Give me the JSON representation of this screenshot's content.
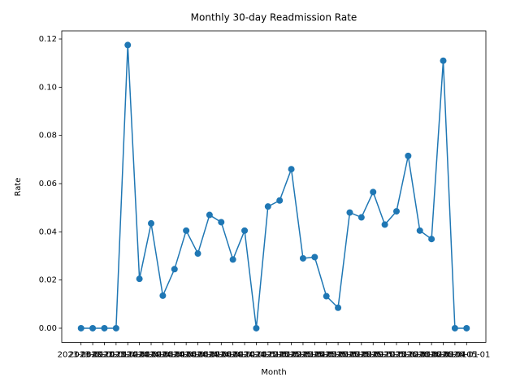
{
  "chart_data": {
    "type": "line",
    "title": "Monthly 30-day Readmission Rate",
    "x_label": "Month",
    "y_label": "Rate",
    "categories": [
      "2023-08-01",
      "2023-09-01",
      "2023-10-01",
      "2023-11-01",
      "2023-12-01",
      "2024-01-01",
      "2024-02-01",
      "2024-03-01",
      "2024-04-01",
      "2024-05-01",
      "2024-06-01",
      "2024-07-01",
      "2024-08-01",
      "2024-09-01",
      "2024-10-01",
      "2024-11-01",
      "2024-12-01",
      "2025-01-01",
      "2025-02-01",
      "2025-03-01",
      "2025-04-01",
      "2025-05-01",
      "2025-06-01",
      "2025-07-01",
      "2025-08-01",
      "2025-09-01",
      "2025-10-01",
      "2025-11-01",
      "2025-12-01",
      "2026-01-01",
      "2026-02-01",
      "2026-03-01",
      "2026-04-01",
      "2026-05-01"
    ],
    "series": [
      {
        "name": "Rate",
        "color": "#1f77b4",
        "values": [
          0,
          0,
          0,
          0,
          0.1175,
          0.0205,
          0.0435,
          0.0135,
          0.0245,
          0.0405,
          0.031,
          0.047,
          0.044,
          0.0285,
          0.0405,
          0,
          0.0505,
          0.053,
          0.066,
          0.029,
          0.0295,
          0.0133,
          0.0085,
          0.048,
          0.046,
          0.0565,
          0.043,
          0.0485,
          0.0715,
          0.0405,
          0.037,
          0.111,
          0,
          0
        ]
      }
    ],
    "ylim": [
      -0.005875,
      0.123375
    ],
    "yticks": [
      {
        "value": 0,
        "label": "0.00"
      },
      {
        "value": 0.02,
        "label": "0.02"
      },
      {
        "value": 0.04,
        "label": "0.04"
      },
      {
        "value": 0.06,
        "label": "0.06"
      },
      {
        "value": 0.08,
        "label": "0.08"
      },
      {
        "value": 0.1,
        "label": "0.10"
      },
      {
        "value": 0.12,
        "label": "0.12"
      }
    ],
    "grid": false
  }
}
